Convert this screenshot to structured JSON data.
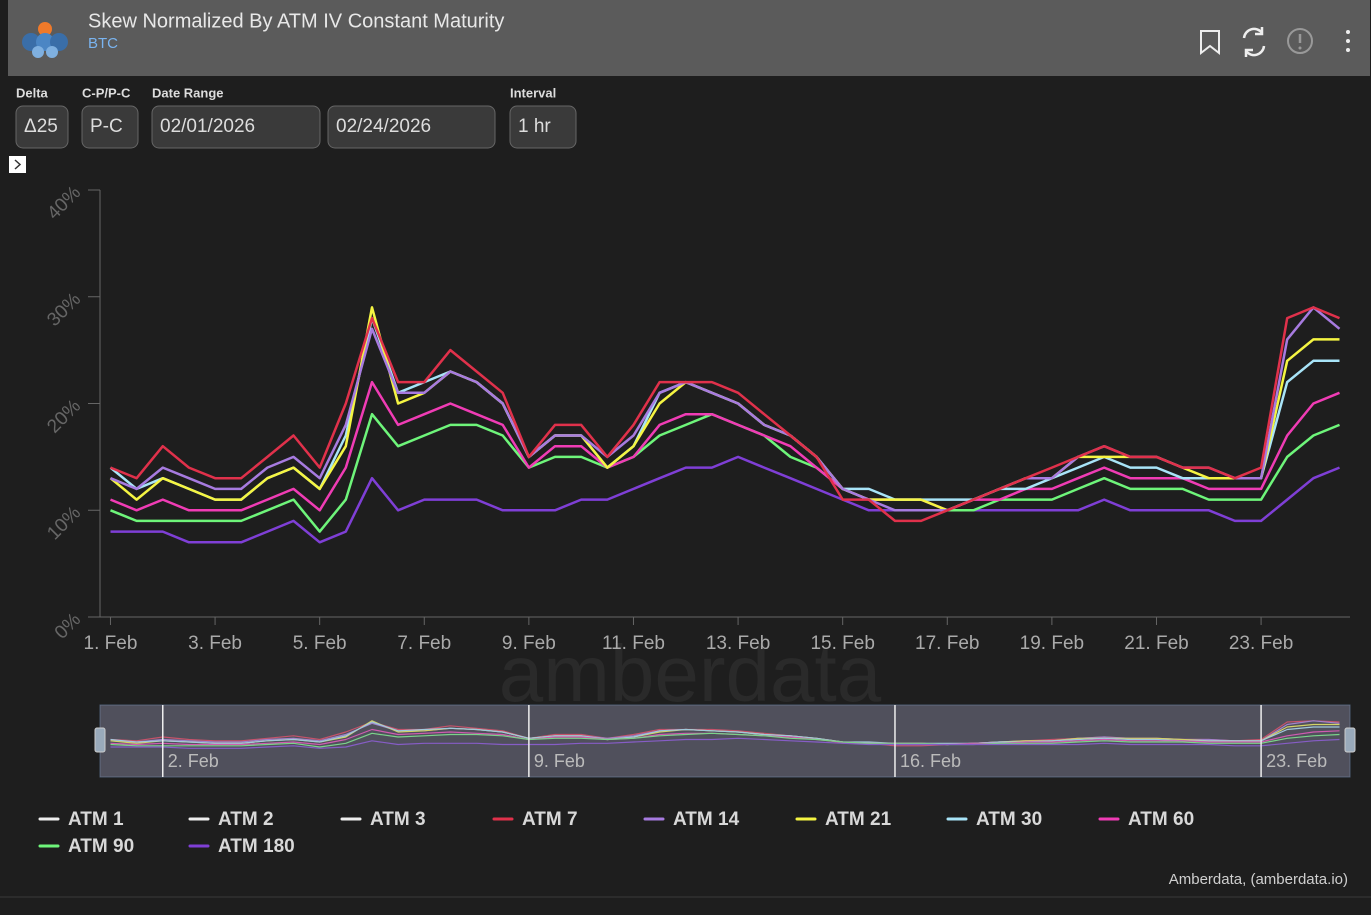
{
  "header": {
    "title": "Skew Normalized By ATM IV Constant Maturity",
    "subtitle": "BTC"
  },
  "controls": [
    {
      "label": "Delta",
      "value": "Δ25"
    },
    {
      "label": "C-P/P-C",
      "value": "P-C"
    },
    {
      "label": "Date Range",
      "value": "02/01/2026"
    },
    {
      "label": null,
      "value": "02/24/2026"
    },
    {
      "label": "Interval",
      "value": "1 hr"
    }
  ],
  "watermark": "amberdata",
  "credit": "Amberdata, (amberdata.io)",
  "chart_data": {
    "type": "line",
    "x": [
      1,
      1.5,
      2,
      2.5,
      3,
      3.5,
      4,
      4.5,
      5,
      5.5,
      6,
      6.5,
      7,
      7.5,
      8,
      8.5,
      9,
      9.5,
      10,
      10.5,
      11,
      11.5,
      12,
      12.5,
      13,
      13.5,
      14,
      14.5,
      15,
      15.5,
      16,
      16.5,
      17,
      17.5,
      18,
      18.5,
      19,
      19.5,
      20,
      20.5,
      21,
      21.5,
      22,
      22.5,
      23,
      23.5,
      24,
      24.5
    ],
    "xlim": [
      0.8,
      24.7
    ],
    "xticks": [
      {
        "value": 1,
        "label": "1. Feb"
      },
      {
        "value": 3,
        "label": "3. Feb"
      },
      {
        "value": 5,
        "label": "5. Feb"
      },
      {
        "value": 7,
        "label": "7. Feb"
      },
      {
        "value": 9,
        "label": "9. Feb"
      },
      {
        "value": 11,
        "label": "11. Feb"
      },
      {
        "value": 13,
        "label": "13. Feb"
      },
      {
        "value": 15,
        "label": "15. Feb"
      },
      {
        "value": 17,
        "label": "17. Feb"
      },
      {
        "value": 19,
        "label": "19. Feb"
      },
      {
        "value": 21,
        "label": "21. Feb"
      },
      {
        "value": 23,
        "label": "23. Feb"
      }
    ],
    "ylim": [
      0,
      40
    ],
    "yticks": [
      {
        "value": 0,
        "label": "0%"
      },
      {
        "value": 10,
        "label": "10%"
      },
      {
        "value": 20,
        "label": "20%"
      },
      {
        "value": 30,
        "label": "30%"
      },
      {
        "value": 40,
        "label": "40%"
      }
    ],
    "navigator_xticks": [
      {
        "value": 2,
        "label": "2. Feb"
      },
      {
        "value": 9,
        "label": "9. Feb"
      },
      {
        "value": 16,
        "label": "16. Feb"
      },
      {
        "value": 23,
        "label": "23. Feb"
      }
    ],
    "series": [
      {
        "name": "ATM 1",
        "color": "#eeeeee",
        "values": [
          null,
          null,
          null,
          null,
          null,
          null,
          null,
          null,
          null,
          null,
          null,
          null,
          null,
          null,
          null,
          null,
          null,
          null,
          null,
          null,
          null,
          null,
          null,
          null,
          null,
          null,
          null,
          null,
          null,
          null,
          null,
          null,
          null,
          null,
          null,
          null,
          null,
          null,
          null,
          null,
          null,
          null,
          null,
          null,
          null,
          null,
          null,
          null
        ]
      },
      {
        "name": "ATM 2",
        "color": "#eeeeee",
        "values": [
          null,
          null,
          null,
          null,
          null,
          null,
          null,
          null,
          null,
          null,
          null,
          null,
          null,
          null,
          null,
          null,
          null,
          null,
          null,
          null,
          null,
          null,
          null,
          null,
          null,
          null,
          null,
          null,
          null,
          null,
          null,
          null,
          null,
          null,
          null,
          null,
          null,
          null,
          null,
          null,
          null,
          null,
          null,
          null,
          null,
          null,
          null,
          null
        ]
      },
      {
        "name": "ATM 3",
        "color": "#eeeeee",
        "values": [
          null,
          null,
          null,
          null,
          null,
          null,
          null,
          null,
          null,
          null,
          null,
          null,
          null,
          null,
          null,
          null,
          null,
          null,
          null,
          null,
          null,
          null,
          null,
          null,
          null,
          null,
          null,
          null,
          null,
          null,
          null,
          null,
          null,
          null,
          null,
          null,
          null,
          null,
          null,
          null,
          null,
          null,
          null,
          null,
          null,
          null,
          null,
          null
        ]
      },
      {
        "name": "ATM 7",
        "color": "#e0314b",
        "values": [
          14,
          13,
          16,
          14,
          13,
          13,
          15,
          17,
          14,
          20,
          28,
          22,
          22,
          25,
          23,
          21,
          15,
          18,
          18,
          15,
          18,
          22,
          22,
          22,
          21,
          19,
          17,
          15,
          11,
          11,
          9,
          9,
          10,
          11,
          12,
          13,
          14,
          15,
          16,
          15,
          15,
          14,
          14,
          13,
          14,
          28,
          29,
          28
        ]
      },
      {
        "name": "ATM 14",
        "color": "#a77be0",
        "values": [
          13,
          12,
          14,
          13,
          12,
          12,
          14,
          15,
          13,
          18,
          27,
          21,
          21,
          23,
          22,
          20,
          15,
          17,
          17,
          15,
          17,
          21,
          22,
          21,
          20,
          18,
          17,
          15,
          12,
          11,
          10,
          10,
          10,
          11,
          12,
          13,
          13,
          15,
          16,
          15,
          15,
          14,
          14,
          13,
          13,
          26,
          29,
          27
        ]
      },
      {
        "name": "ATM 21",
        "color": "#f5f542",
        "values": [
          13,
          11,
          13,
          12,
          11,
          11,
          13,
          14,
          12,
          16,
          29,
          20,
          21,
          23,
          22,
          20,
          15,
          17,
          17,
          14,
          16,
          20,
          22,
          21,
          20,
          18,
          17,
          15,
          12,
          11,
          11,
          11,
          10,
          11,
          12,
          13,
          13,
          15,
          15,
          15,
          15,
          14,
          13,
          13,
          13,
          24,
          26,
          26
        ]
      },
      {
        "name": "ATM 30",
        "color": "#a8e4f8",
        "values": [
          14,
          12,
          13,
          12,
          11,
          11,
          13,
          14,
          12,
          17,
          28,
          21,
          22,
          23,
          22,
          20,
          15,
          17,
          17,
          14,
          16,
          21,
          22,
          21,
          20,
          18,
          17,
          15,
          12,
          12,
          11,
          11,
          11,
          11,
          12,
          12,
          13,
          14,
          15,
          14,
          14,
          13,
          13,
          13,
          13,
          22,
          24,
          24
        ]
      },
      {
        "name": "ATM 60",
        "color": "#f03cb5",
        "values": [
          11,
          10,
          11,
          10,
          10,
          10,
          11,
          12,
          10,
          14,
          22,
          18,
          19,
          20,
          19,
          18,
          14,
          16,
          16,
          14,
          15,
          18,
          19,
          19,
          18,
          17,
          16,
          14,
          12,
          11,
          11,
          11,
          10,
          11,
          11,
          12,
          12,
          13,
          14,
          13,
          13,
          13,
          12,
          12,
          12,
          17,
          20,
          21
        ]
      },
      {
        "name": "ATM 90",
        "color": "#6ef57a",
        "values": [
          10,
          9,
          9,
          9,
          9,
          9,
          10,
          11,
          8,
          11,
          19,
          16,
          17,
          18,
          18,
          17,
          14,
          15,
          15,
          14,
          15,
          17,
          18,
          19,
          18,
          17,
          15,
          14,
          12,
          11,
          11,
          11,
          10,
          10,
          11,
          11,
          11,
          12,
          13,
          12,
          12,
          12,
          11,
          11,
          11,
          15,
          17,
          18
        ]
      },
      {
        "name": "ATM 180",
        "color": "#7f3fd6",
        "values": [
          8,
          8,
          8,
          7,
          7,
          7,
          8,
          9,
          7,
          8,
          13,
          10,
          11,
          11,
          11,
          10,
          10,
          10,
          11,
          11,
          12,
          13,
          14,
          14,
          15,
          14,
          13,
          12,
          11,
          10,
          10,
          10,
          10,
          10,
          10,
          10,
          10,
          10,
          11,
          10,
          10,
          10,
          10,
          9,
          9,
          11,
          13,
          14
        ]
      }
    ]
  }
}
